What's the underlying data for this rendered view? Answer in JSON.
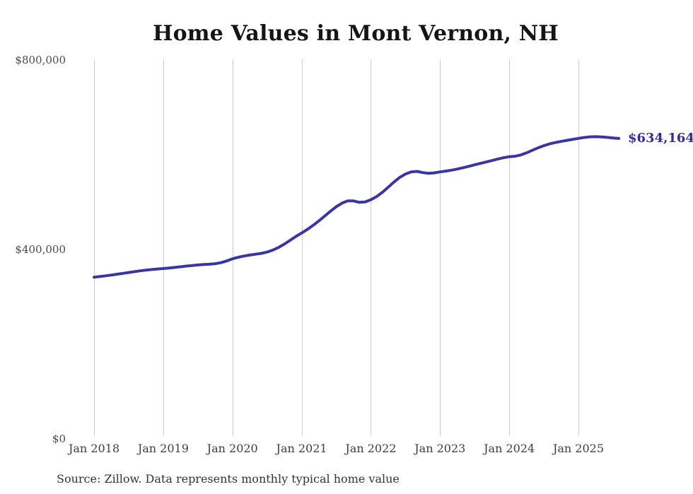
{
  "chart": {
    "title": "Home Values in Mont Vernon, NH",
    "end_label": "$634,164",
    "source_note": "Source: Zillow. Data represents monthly typical home value",
    "line_color": "#3a35a0",
    "end_label_color": "#322d96",
    "grid_color": "#cccccc"
  },
  "chart_data": {
    "type": "line",
    "title": "Home Values in Mont Vernon, NH",
    "interval": "monthly",
    "x_start": "Jan 2018",
    "x_end": "Aug 2025",
    "x_tick_labels": [
      "Jan 2018",
      "Jan 2019",
      "Jan 2020",
      "Jan 2021",
      "Jan 2022",
      "Jan 2023",
      "Jan 2024",
      "Jan 2025"
    ],
    "y_ticks": [
      {
        "value": 0,
        "label": "$0"
      },
      {
        "value": 400000,
        "label": "$400,000"
      },
      {
        "value": 800000,
        "label": "$800,000"
      }
    ],
    "ylim": [
      0,
      800000
    ],
    "grid": "vertical-only",
    "legend": "none",
    "end_value": 634164,
    "series": [
      {
        "name": "Monthly typical home value",
        "values": [
          341000,
          342400,
          343900,
          345500,
          347200,
          349000,
          350900,
          352700,
          354400,
          355900,
          357200,
          358300,
          359200,
          360300,
          361600,
          363000,
          364400,
          365700,
          366800,
          367700,
          368400,
          369600,
          371600,
          375300,
          379800,
          383100,
          385700,
          387800,
          389500,
          391400,
          394100,
          398200,
          403900,
          410900,
          419000,
          427100,
          434300,
          441900,
          450600,
          460100,
          470200,
          480400,
          489900,
          497600,
          502300,
          502100,
          499200,
          500100,
          504700,
          511500,
          520400,
          531000,
          541900,
          551800,
          559100,
          563600,
          564600,
          562100,
          560400,
          561400,
          563500,
          565200,
          567200,
          569600,
          572400,
          575400,
          578500,
          581500,
          584500,
          587500,
          590600,
          593400,
          595600,
          596600,
          599200,
          603700,
          609100,
          614400,
          618900,
          622700,
          625600,
          628000,
          630100,
          632200,
          634300,
          636300,
          637600,
          638000,
          637500,
          636500,
          635200,
          634164
        ]
      }
    ]
  }
}
